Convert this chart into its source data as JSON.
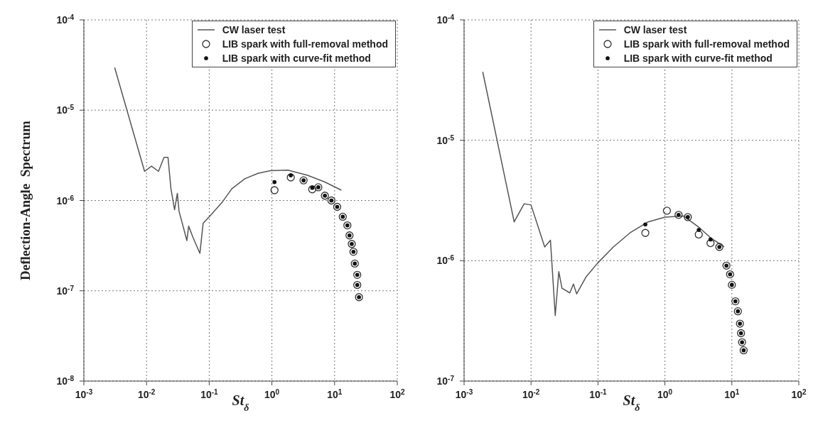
{
  "chart_data": [
    {
      "type": "scatter",
      "xlabel": "St$_{δ}$",
      "ylabel": "Deflection-Angle  Spectrum",
      "log": "xy",
      "grid": true,
      "legend": "top right",
      "xlim": [
        0.001,
        100
      ],
      "xticks": [
        {
          "value": 0.001,
          "label": "10$^{-3}$"
        },
        {
          "value": 0.01,
          "label": "10$^{-2}$"
        },
        {
          "value": 0.1,
          "label": "10$^{-1}$"
        },
        {
          "value": 1,
          "label": "10$^{0}$"
        },
        {
          "value": 10,
          "label": "10$^{1}$"
        },
        {
          "value": 100,
          "label": "10$^{2}$"
        }
      ],
      "ylim": [
        1e-08,
        0.0001
      ],
      "yticks": [
        {
          "value": 1e-08,
          "label": "10$^{-8}$"
        },
        {
          "value": 1e-07,
          "label": "10$^{-7}$"
        },
        {
          "value": 1e-06,
          "label": "10$^{-6}$"
        },
        {
          "value": 1e-05,
          "label": "10$^{-5}$"
        },
        {
          "value": 0.0001,
          "label": "10$^{-4}$"
        }
      ],
      "series": [
        {
          "name": "CW laser test",
          "type": "line",
          "color": "#555555",
          "marker": "none",
          "line_style": "solid",
          "x": [
            0.0031,
            0.0093,
            0.012,
            0.0155,
            0.019,
            0.022,
            0.0245,
            0.028,
            0.031,
            0.033,
            0.044,
            0.047,
            0.055,
            0.071,
            0.08,
            0.1,
            0.16,
            0.23,
            0.37,
            0.6,
            0.95,
            1.8,
            3.7,
            7,
            12.8
          ],
          "values": [
            2.96e-05,
            2.1e-06,
            2.4e-06,
            2.1e-06,
            3e-06,
            3e-06,
            1.35e-06,
            7.9e-07,
            1.2e-06,
            7.6e-07,
            3.6e-07,
            5.2e-07,
            3.9e-07,
            2.6e-07,
            5.6e-07,
            6.6e-07,
            9.5e-07,
            1.35e-06,
            1.74e-06,
            2e-06,
            2.14e-06,
            2.17e-06,
            1.9e-06,
            1.6e-06,
            1.3e-06
          ]
        },
        {
          "name": "LIB spark with full-removal method",
          "type": "scatter",
          "color": "#333333",
          "marker": "circle",
          "x": [
            1.1,
            2.0,
            3.2,
            4.4,
            5.5,
            7.0,
            8.9,
            11,
            13.5,
            16,
            17.3,
            18.8,
            20,
            21,
            23,
            23,
            24.5
          ],
          "values": [
            1.3e-06,
            1.8e-06,
            1.67e-06,
            1.33e-06,
            1.4e-06,
            1.13e-06,
            1e-06,
            8.5e-07,
            6.6e-07,
            5.3e-07,
            4.1e-07,
            3.3e-07,
            2.7e-07,
            2e-07,
            1.5e-07,
            1.16e-07,
            8.5e-08
          ]
        },
        {
          "name": "LIB spark with curve-fit method",
          "type": "scatter",
          "color": "#111111",
          "marker": "circle",
          "x": [
            1.1,
            2.0,
            3.2,
            4.4,
            5.5,
            7.0,
            8.9,
            11,
            13.5,
            16,
            17.3,
            18.8,
            20,
            21,
            23,
            23,
            24.5
          ],
          "values": [
            1.6e-06,
            1.9e-06,
            1.67e-06,
            1.38e-06,
            1.4e-06,
            1.13e-06,
            1e-06,
            8.5e-07,
            6.6e-07,
            5.3e-07,
            4.1e-07,
            3.3e-07,
            2.7e-07,
            2e-07,
            1.5e-07,
            1.16e-07,
            8.5e-08
          ]
        }
      ]
    },
    {
      "type": "scatter",
      "xlabel": "St$_{δ}$",
      "log": "xy",
      "grid": true,
      "legend": "top right",
      "xlim": [
        0.001,
        100
      ],
      "xticks": [
        {
          "value": 0.001,
          "label": "10$^{-3}$"
        },
        {
          "value": 0.01,
          "label": "10$^{-2}$"
        },
        {
          "value": 0.1,
          "label": "10$^{-1}$"
        },
        {
          "value": 1,
          "label": "10$^{0}$"
        },
        {
          "value": 10,
          "label": "10$^{1}$"
        },
        {
          "value": 100,
          "label": "10$^{2}$"
        }
      ],
      "ylim": [
        1e-07,
        0.0001
      ],
      "yticks": [
        {
          "value": 1e-07,
          "label": "10$^{-7}$"
        },
        {
          "value": 1e-06,
          "label": "10$^{-6}$"
        },
        {
          "value": 1e-05,
          "label": "10$^{-5}$"
        },
        {
          "value": 0.0001,
          "label": "10$^{-4}$"
        }
      ],
      "series": [
        {
          "name": "CW laser test",
          "type": "line",
          "color": "#555555",
          "marker": "none",
          "line_style": "solid",
          "x": [
            0.0019,
            0.0056,
            0.0079,
            0.01,
            0.016,
            0.0195,
            0.023,
            0.026,
            0.029,
            0.038,
            0.043,
            0.048,
            0.066,
            0.098,
            0.17,
            0.3,
            0.56,
            1.0,
            1.9,
            3.2,
            4.8,
            7.7
          ],
          "values": [
            3.7e-05,
            2.1e-06,
            2.97e-06,
            2.9e-06,
            1.3e-06,
            1.48e-06,
            3.5e-07,
            8.1e-07,
            5.9e-07,
            5.4e-07,
            6.4e-07,
            5.3e-07,
            7.3e-07,
            9.5e-07,
            1.3e-06,
            1.7e-06,
            2.1e-06,
            2.3e-06,
            2.35e-06,
            1.9e-06,
            1.55e-06,
            1.3e-06
          ]
        },
        {
          "name": "LIB spark with full-removal method",
          "type": "scatter",
          "color": "#333333",
          "marker": "circle",
          "x": [
            0.51,
            1.07,
            1.6,
            2.2,
            3.2,
            4.8,
            6.5,
            8.3,
            9.4,
            10,
            11.3,
            12.3,
            13.2,
            13.7,
            14.2,
            15
          ],
          "values": [
            1.7e-06,
            2.6e-06,
            2.4e-06,
            2.3e-06,
            1.65e-06,
            1.4e-06,
            1.3e-06,
            9.1e-07,
            7.7e-07,
            6.3e-07,
            4.6e-07,
            3.8e-07,
            3e-07,
            2.5e-07,
            2.1e-07,
            1.8e-07
          ]
        },
        {
          "name": "LIB spark with curve-fit method",
          "type": "scatter",
          "color": "#111111",
          "marker": "circle",
          "x": [
            0.51,
            1.6,
            2.2,
            3.2,
            4.8,
            6.5,
            8.3,
            9.4,
            10,
            11.3,
            12.3,
            13.2,
            13.7,
            14.2,
            15
          ],
          "values": [
            2e-06,
            2.4e-06,
            2.3e-06,
            1.8e-06,
            1.5e-06,
            1.3e-06,
            9.1e-07,
            7.7e-07,
            6.3e-07,
            4.6e-07,
            3.8e-07,
            3e-07,
            2.5e-07,
            2.1e-07,
            1.8e-07
          ]
        }
      ]
    }
  ]
}
